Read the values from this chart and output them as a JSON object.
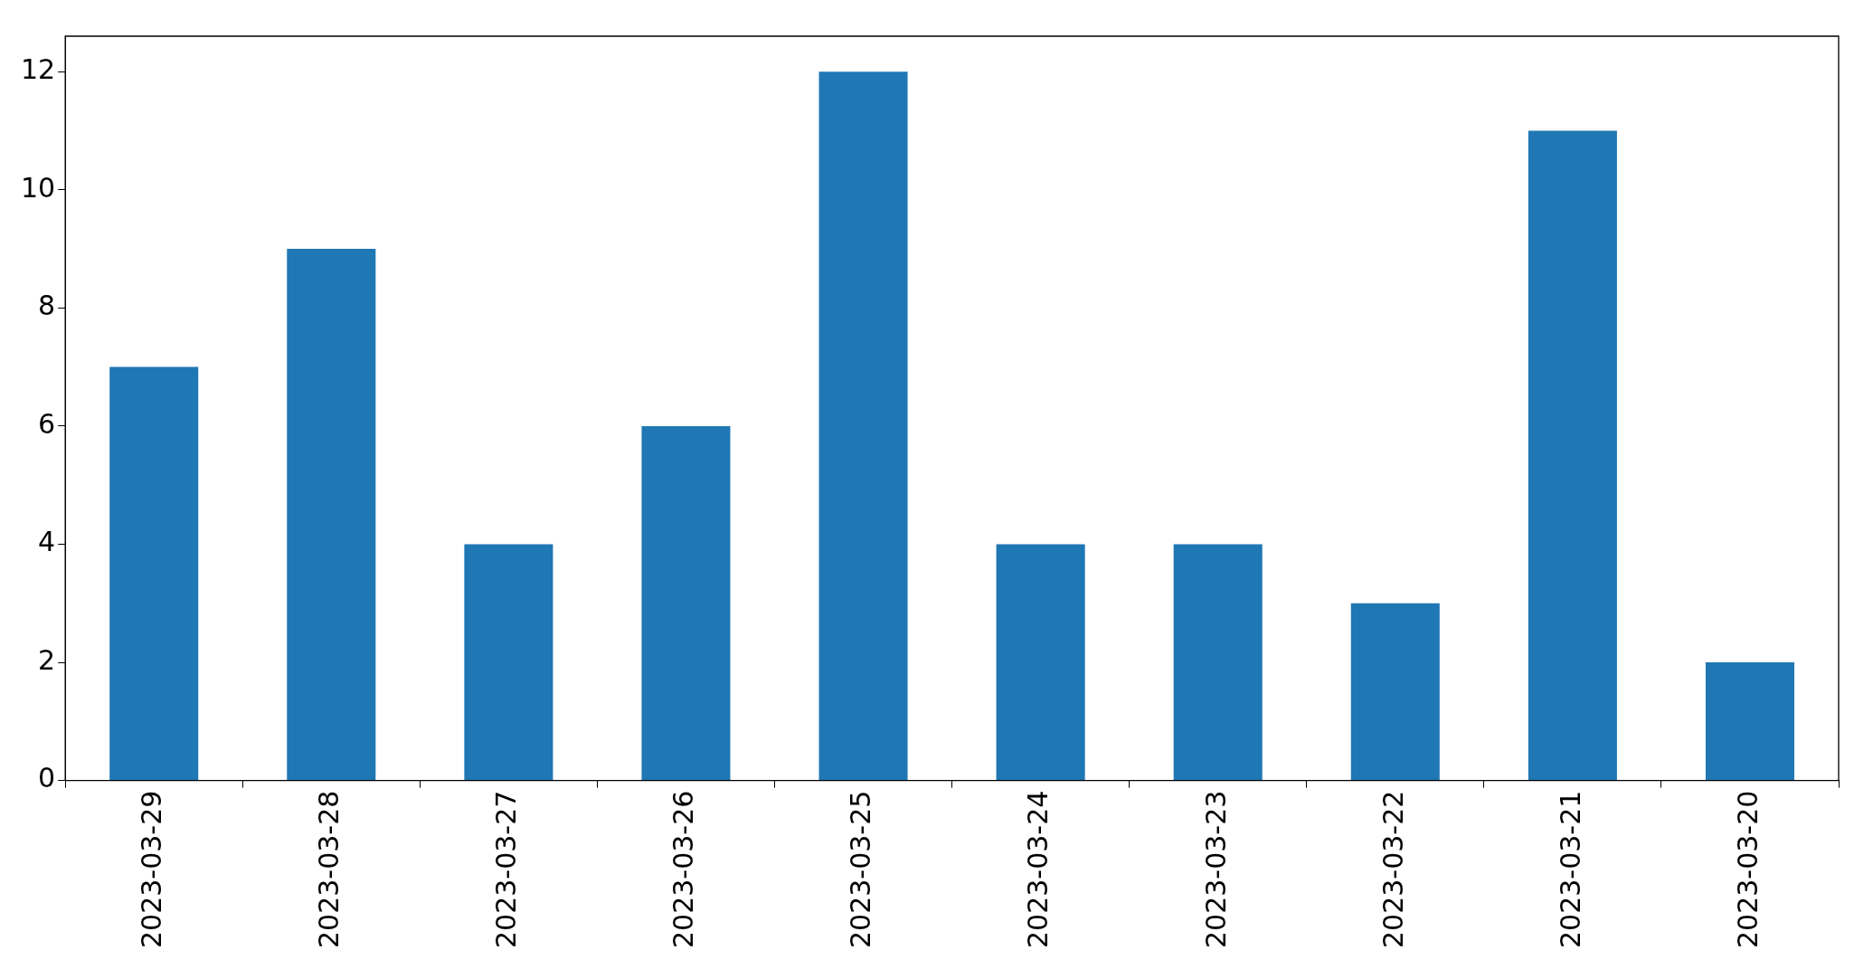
{
  "chart_data": {
    "type": "bar",
    "categories": [
      "2023-03-29",
      "2023-03-28",
      "2023-03-27",
      "2023-03-26",
      "2023-03-25",
      "2023-03-24",
      "2023-03-23",
      "2023-03-22",
      "2023-03-21",
      "2023-03-20"
    ],
    "values": [
      7,
      9,
      4,
      6,
      12,
      4,
      4,
      3,
      11,
      2
    ],
    "color": "#1f77b4",
    "ylim": [
      0,
      12.6
    ],
    "yticks": [
      0,
      2,
      4,
      6,
      8,
      10,
      12
    ],
    "grid": false,
    "legend": false
  }
}
